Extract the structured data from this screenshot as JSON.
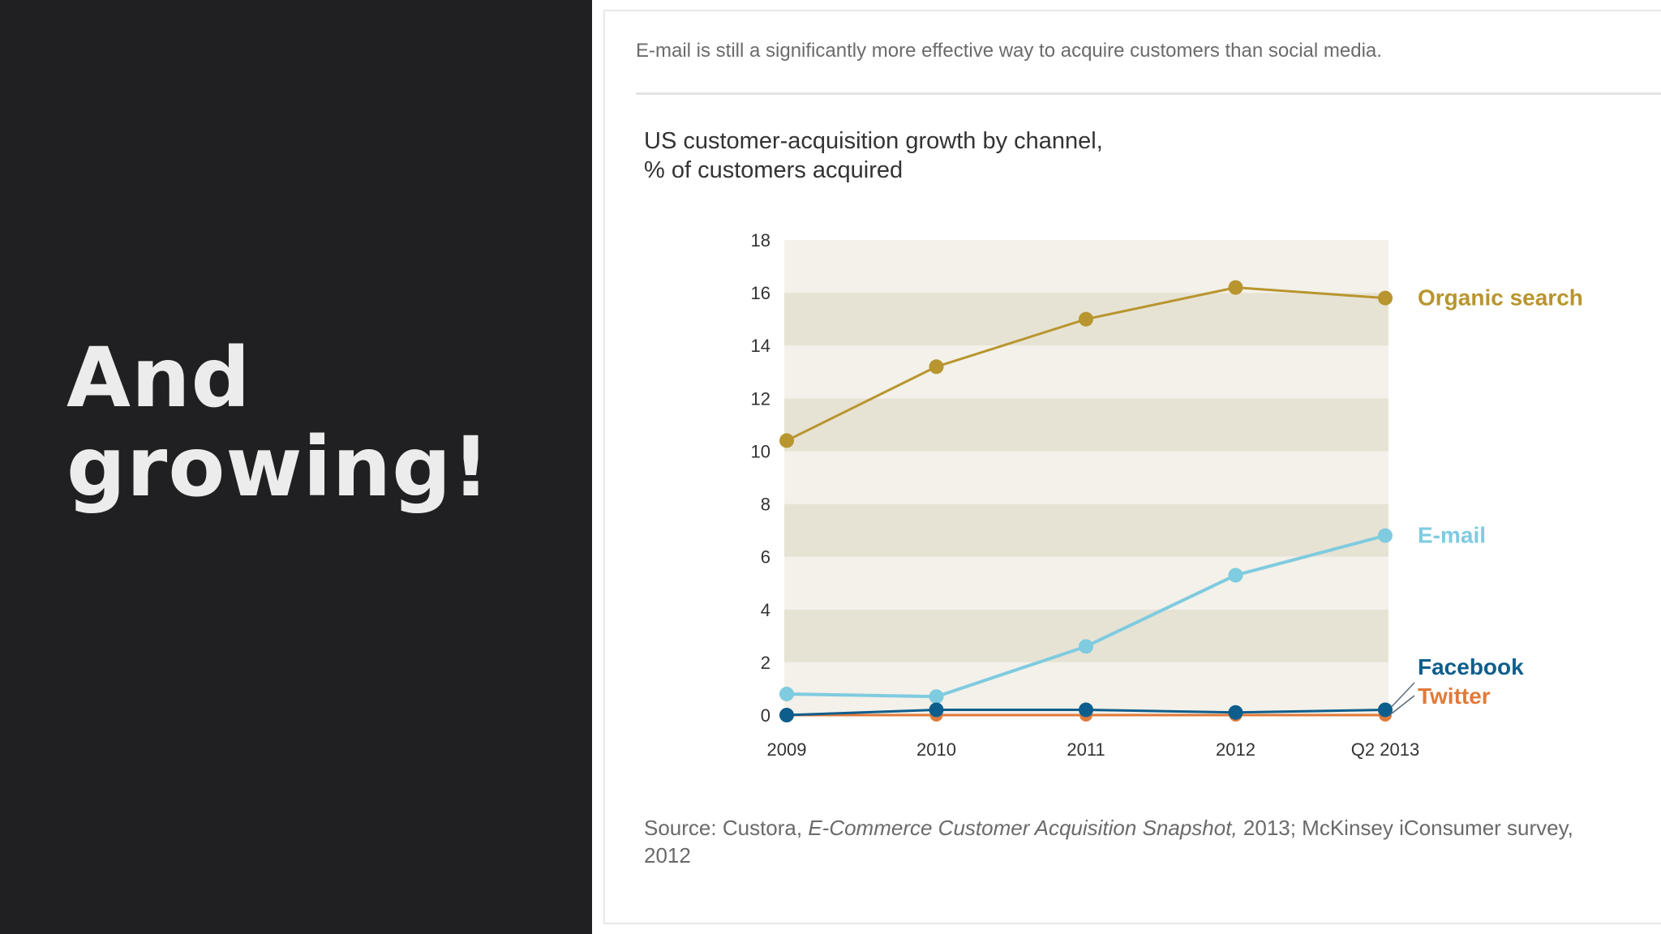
{
  "slide": {
    "title": "And growing!"
  },
  "card": {
    "caption": "E-mail is still a significantly more effective way to acquire customers than social media.",
    "chart_title_line1": "US customer-acquisition growth by channel,",
    "chart_title_line2": "% of customers acquired",
    "source_prefix": "Source: Custora, ",
    "source_title": "E-Commerce Customer Acquisition Snapshot,",
    "source_suffix": " 2013; McKinsey iConsumer survey, 2012"
  },
  "colors": {
    "organic": "#b8952f",
    "email": "#7fcbe0",
    "facebook": "#0d5e8c",
    "twitter": "#e07a3a",
    "band_light": "#f3f1e9",
    "band_dark": "#e7e3d4",
    "axis_text": "#333333"
  },
  "chart_data": {
    "type": "line",
    "title": "US customer-acquisition growth by channel, % of customers acquired",
    "xlabel": "",
    "ylabel": "",
    "categories": [
      "2009",
      "2010",
      "2011",
      "2012",
      "Q2 2013"
    ],
    "ylim": [
      0,
      18
    ],
    "yticks": [
      0,
      2,
      4,
      6,
      8,
      10,
      12,
      14,
      16,
      18
    ],
    "series": [
      {
        "name": "Organic search",
        "key": "organic",
        "values": [
          10.4,
          13.2,
          15.0,
          16.2,
          15.8
        ]
      },
      {
        "name": "E-mail",
        "key": "email",
        "values": [
          0.8,
          0.7,
          2.6,
          5.3,
          6.8
        ]
      },
      {
        "name": "Twitter",
        "key": "twitter",
        "values": [
          0.0,
          0.0,
          0.0,
          0.0,
          0.0
        ]
      },
      {
        "name": "Facebook",
        "key": "facebook",
        "values": [
          0.0,
          0.2,
          0.2,
          0.1,
          0.2
        ]
      }
    ]
  }
}
